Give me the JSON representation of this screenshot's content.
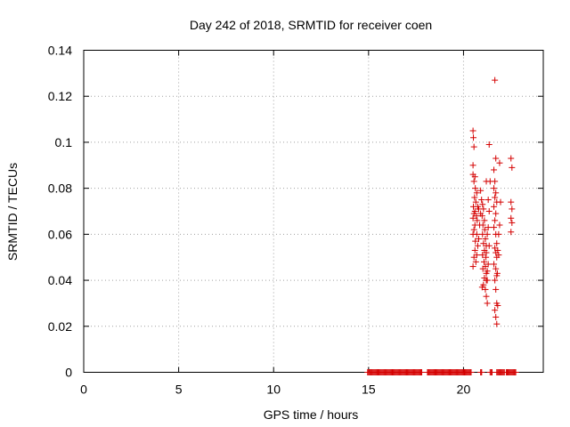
{
  "chart_data": {
    "type": "scatter",
    "title": "Day 242 of 2018, SRMTID for receiver coen",
    "xlabel": "GPS time / hours",
    "ylabel": "SRMTID / TECUs",
    "xlim": [
      0,
      24.2
    ],
    "ylim": [
      0,
      0.14
    ],
    "xticks": [
      0,
      5,
      10,
      15,
      20
    ],
    "yticks": [
      0,
      0.02,
      0.04,
      0.06,
      0.08,
      0.1,
      0.12,
      0.14
    ],
    "ytick_labels": [
      "0",
      "0.02",
      "0.04",
      "0.06",
      "0.08",
      "0.1",
      "0.12",
      "0.14"
    ],
    "grid": true,
    "marker": "+",
    "color": "#d40000",
    "zero_band": {
      "from": 14.95,
      "to": 22.75,
      "gaps": [
        [
          17.85,
          18.1
        ],
        [
          20.45,
          20.9
        ],
        [
          21.0,
          21.4
        ],
        [
          21.55,
          21.75
        ],
        [
          22.2,
          22.3
        ]
      ]
    },
    "series": [
      {
        "values": [
          [
            20.5,
            0.105
          ],
          [
            20.52,
            0.102
          ],
          [
            20.55,
            0.098
          ],
          [
            20.5,
            0.09
          ],
          [
            20.6,
            0.085
          ],
          [
            20.55,
            0.083
          ],
          [
            20.5,
            0.086
          ],
          [
            20.62,
            0.08
          ],
          [
            20.7,
            0.078
          ],
          [
            20.58,
            0.076
          ],
          [
            20.65,
            0.074
          ],
          [
            20.52,
            0.072
          ],
          [
            20.75,
            0.072
          ],
          [
            20.6,
            0.07
          ],
          [
            20.8,
            0.071
          ],
          [
            20.55,
            0.069
          ],
          [
            20.68,
            0.068
          ],
          [
            20.9,
            0.069
          ],
          [
            20.5,
            0.067
          ],
          [
            20.72,
            0.066
          ],
          [
            20.6,
            0.064
          ],
          [
            20.85,
            0.064
          ],
          [
            20.55,
            0.062
          ],
          [
            20.7,
            0.06
          ],
          [
            20.5,
            0.06
          ],
          [
            20.8,
            0.058
          ],
          [
            20.62,
            0.057
          ],
          [
            20.75,
            0.055
          ],
          [
            20.6,
            0.053
          ],
          [
            20.7,
            0.051
          ],
          [
            20.55,
            0.05
          ],
          [
            20.65,
            0.048
          ],
          [
            20.5,
            0.046
          ],
          [
            20.9,
            0.079
          ],
          [
            20.95,
            0.075
          ],
          [
            21.0,
            0.073
          ],
          [
            21.05,
            0.071
          ],
          [
            20.98,
            0.068
          ],
          [
            21.1,
            0.066
          ],
          [
            21.02,
            0.064
          ],
          [
            21.12,
            0.062
          ],
          [
            21.0,
            0.06
          ],
          [
            21.15,
            0.058
          ],
          [
            21.05,
            0.056
          ],
          [
            21.2,
            0.055
          ],
          [
            21.1,
            0.053
          ],
          [
            21.0,
            0.051
          ],
          [
            21.18,
            0.05
          ],
          [
            21.08,
            0.048
          ],
          [
            21.15,
            0.046
          ],
          [
            21.02,
            0.045
          ],
          [
            21.2,
            0.043
          ],
          [
            21.1,
            0.041
          ],
          [
            21.25,
            0.04
          ],
          [
            21.05,
            0.038
          ],
          [
            20.98,
            0.037
          ],
          [
            21.15,
            0.036
          ],
          [
            21.2,
            0.033
          ],
          [
            21.25,
            0.03
          ],
          [
            21.2,
            0.083
          ],
          [
            21.35,
            0.099
          ],
          [
            21.4,
            0.083
          ],
          [
            21.3,
            0.075
          ],
          [
            21.35,
            0.07
          ],
          [
            21.3,
            0.063
          ],
          [
            21.25,
            0.06
          ],
          [
            21.35,
            0.055
          ],
          [
            21.2,
            0.052
          ],
          [
            21.3,
            0.047
          ],
          [
            21.25,
            0.044
          ],
          [
            21.2,
            0.04
          ],
          [
            21.65,
            0.127
          ],
          [
            21.7,
            0.093
          ],
          [
            21.6,
            0.088
          ],
          [
            21.65,
            0.083
          ],
          [
            21.6,
            0.08
          ],
          [
            21.7,
            0.078
          ],
          [
            21.65,
            0.076
          ],
          [
            21.75,
            0.074
          ],
          [
            21.6,
            0.072
          ],
          [
            21.7,
            0.069
          ],
          [
            21.65,
            0.066
          ],
          [
            21.6,
            0.063
          ],
          [
            21.7,
            0.06
          ],
          [
            21.75,
            0.056
          ],
          [
            21.65,
            0.054
          ],
          [
            21.7,
            0.052
          ],
          [
            21.75,
            0.05
          ],
          [
            21.6,
            0.047
          ],
          [
            21.7,
            0.045
          ],
          [
            21.75,
            0.042
          ],
          [
            21.65,
            0.04
          ],
          [
            21.7,
            0.036
          ],
          [
            21.75,
            0.03
          ],
          [
            21.65,
            0.027
          ],
          [
            21.8,
            0.029
          ],
          [
            21.7,
            0.024
          ],
          [
            21.75,
            0.021
          ],
          [
            21.9,
            0.091
          ],
          [
            21.95,
            0.074
          ],
          [
            21.9,
            0.064
          ],
          [
            21.85,
            0.06
          ],
          [
            21.8,
            0.053
          ],
          [
            21.85,
            0.051
          ],
          [
            21.78,
            0.043
          ],
          [
            22.5,
            0.093
          ],
          [
            22.55,
            0.089
          ],
          [
            22.5,
            0.074
          ],
          [
            22.55,
            0.071
          ],
          [
            22.5,
            0.067
          ],
          [
            22.55,
            0.065
          ],
          [
            22.5,
            0.061
          ]
        ]
      }
    ]
  }
}
